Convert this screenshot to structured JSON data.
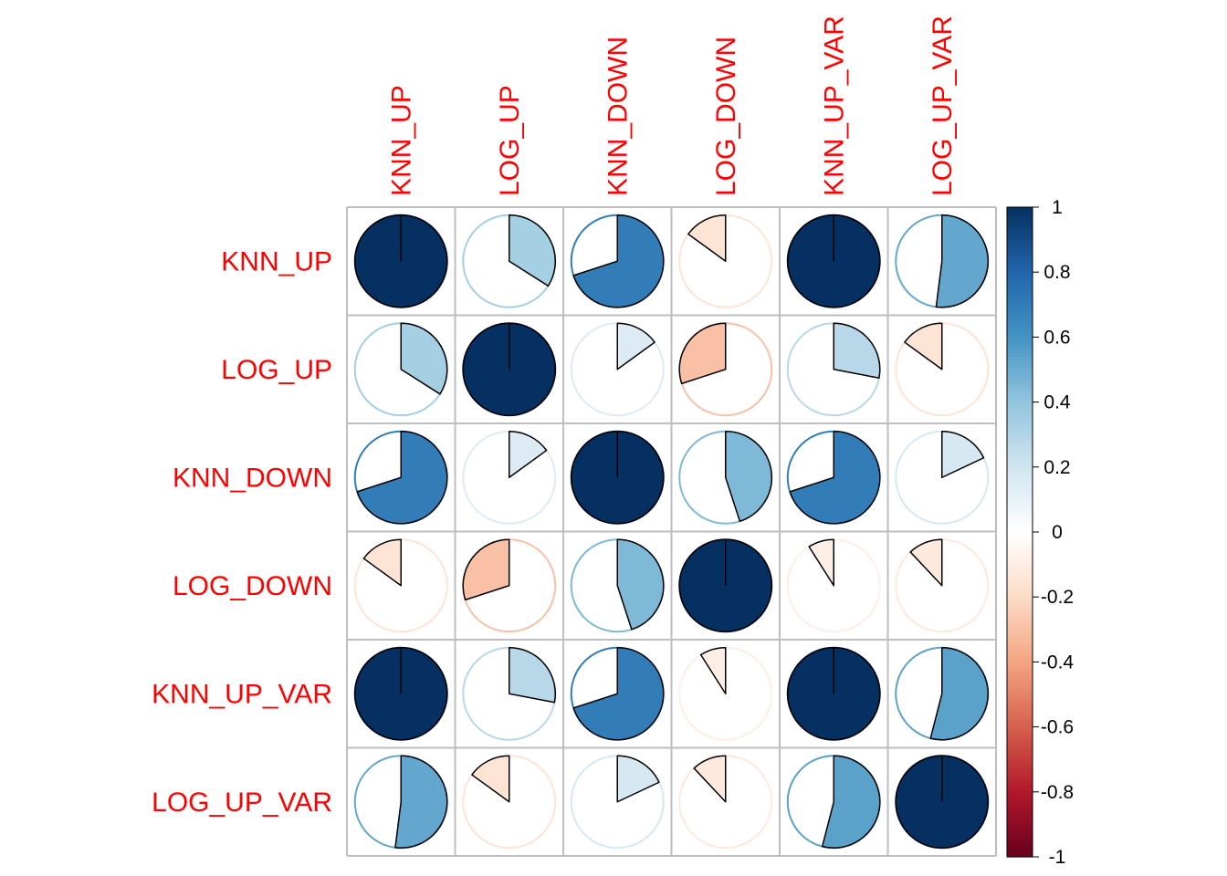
{
  "chart_data": {
    "type": "heatmap",
    "style": "correlation matrix, pie glyphs",
    "variables": [
      "KNN_UP",
      "LOG_UP",
      "KNN_DOWN",
      "LOG_DOWN",
      "KNN_UP_VAR",
      "LOG_UP_VAR"
    ],
    "matrix": [
      [
        1.0,
        0.34,
        0.7,
        -0.15,
        1.0,
        0.52
      ],
      [
        0.34,
        1.0,
        0.15,
        -0.3,
        0.28,
        -0.15
      ],
      [
        0.7,
        0.15,
        1.0,
        0.45,
        0.7,
        0.18
      ],
      [
        -0.15,
        -0.3,
        0.45,
        1.0,
        -0.09,
        -0.12
      ],
      [
        1.0,
        0.28,
        0.7,
        -0.09,
        1.0,
        0.54
      ],
      [
        0.52,
        -0.15,
        0.18,
        -0.12,
        0.54,
        1.0
      ]
    ],
    "color_scale": {
      "range": [
        -1,
        1
      ],
      "ticks": [
        "1",
        "0.8",
        "0.6",
        "0.4",
        "0.2",
        "0",
        "-0.2",
        "-0.4",
        "-0.6",
        "-0.8",
        "-1"
      ],
      "colors": [
        "#67001F",
        "#B2182B",
        "#D6604D",
        "#F4A582",
        "#FDDBC7",
        "#FFFFFF",
        "#D1E5F0",
        "#92C5DE",
        "#4393C3",
        "#2166AC",
        "#053061"
      ]
    },
    "label_color": "#ff0000",
    "grid": true,
    "legend": "right"
  }
}
